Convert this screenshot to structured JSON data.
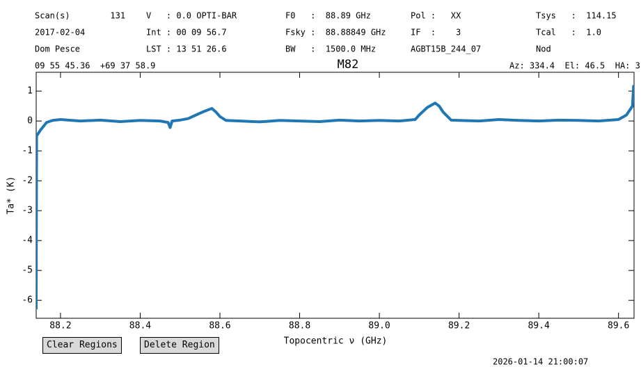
{
  "info_columns": [
    [
      "Scan(s)        131",
      "2017-02-04",
      "Dom Pesce"
    ],
    [
      "V   : 0.0 OPTI-BAR",
      "Int : 00 09 56.7",
      "LST : 13 51 26.6"
    ],
    [
      "F0   :  88.89 GHz",
      "Fsky :  88.88849 GHz",
      "BW   :  1500.0 MHz"
    ],
    [
      "Pol :   XX",
      "IF  :    3",
      "AGBT15B_244_07"
    ],
    [
      "Tsys   :  114.15",
      "Tcal   :  1.0",
      "Nod"
    ]
  ],
  "coordinates": "09 55 45.36  +69 37 58.9",
  "pointing": "Az: 334.4  El: 46.5  HA: 3",
  "buttons": [
    "Clear Regions",
    "Delete Region"
  ],
  "timestamp": "2026-01-14 21:00:07",
  "chart_data": {
    "type": "line",
    "title": "M82",
    "x_label": "Topocentric ν (GHz)",
    "y_label": "Ta* (K)",
    "x": [
      88.139,
      88.14,
      88.15,
      88.165,
      88.18,
      88.2,
      88.25,
      88.3,
      88.35,
      88.4,
      88.45,
      88.47,
      88.475,
      88.48,
      88.5,
      88.52,
      88.54,
      88.56,
      88.58,
      88.59,
      88.6,
      88.615,
      88.65,
      88.7,
      88.75,
      88.8,
      88.85,
      88.9,
      88.95,
      89.0,
      89.05,
      89.09,
      89.1,
      89.12,
      89.14,
      89.15,
      89.16,
      89.18,
      89.2,
      89.25,
      89.3,
      89.35,
      89.4,
      89.45,
      89.5,
      89.55,
      89.6,
      89.62,
      89.635,
      89.638
    ],
    "series": [
      {
        "name": "M82",
        "color": "#1f77b4",
        "values": [
          -6.3,
          -0.5,
          -0.3,
          -0.05,
          0.02,
          0.05,
          0.0,
          0.03,
          -0.02,
          0.02,
          0.0,
          -0.05,
          -0.22,
          0.0,
          0.03,
          0.08,
          0.2,
          0.32,
          0.42,
          0.3,
          0.15,
          0.02,
          0.0,
          -0.03,
          0.02,
          0.0,
          -0.02,
          0.03,
          0.0,
          0.02,
          0.0,
          0.05,
          0.2,
          0.45,
          0.6,
          0.5,
          0.3,
          0.03,
          0.02,
          0.0,
          0.05,
          0.02,
          0.0,
          0.03,
          0.02,
          0.0,
          0.05,
          0.2,
          0.5,
          1.2
        ]
      }
    ],
    "xlim": [
      88.139,
      89.639
    ],
    "ylim": [
      -6.6,
      1.63
    ],
    "xticks": [
      88.2,
      88.4,
      88.6,
      88.8,
      {
        "value": 89,
        "label": "89.0"
      },
      89.2,
      89.4,
      89.6
    ],
    "yticks": [
      -6,
      -5,
      -4,
      -3,
      -2,
      -1,
      0,
      1
    ]
  }
}
